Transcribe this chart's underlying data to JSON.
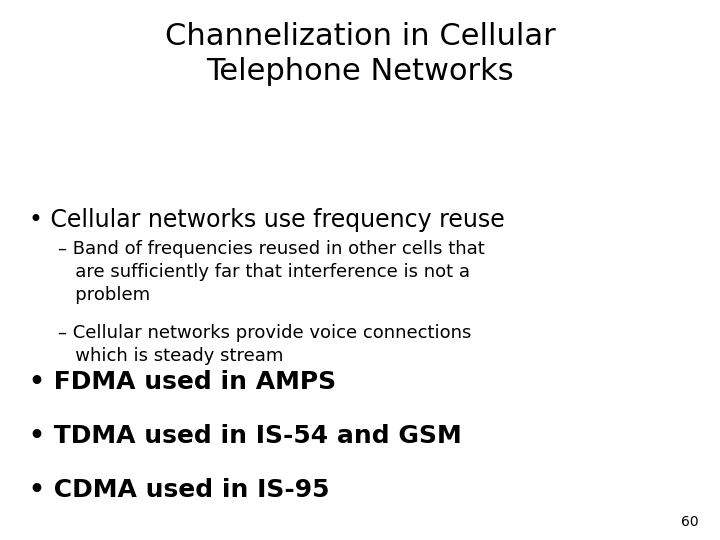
{
  "title_line1": "Channelization in Cellular",
  "title_line2": "Telephone Networks",
  "title_fontsize": 22,
  "title_fontweight": "normal",
  "background_color": "#ffffff",
  "text_color": "#000000",
  "slide_number": "60",
  "bullet1": "Cellular networks use frequency reuse",
  "bullet1_fontsize": 17,
  "bullet1_fontweight": "normal",
  "sub1_line1": "– Band of frequencies reused in other cells that",
  "sub1_line2": "   are sufficiently far that interference is not a",
  "sub1_line3": "   problem",
  "sub2_line1": "– Cellular networks provide voice connections",
  "sub2_line2": "   which is steady stream",
  "sub_fontsize": 13,
  "bullet2": "FDMA used in AMPS",
  "bullet3": "TDMA used in IS-54 and GSM",
  "bullet4": "CDMA used in IS-95",
  "bullet234_fontsize": 18,
  "bullet234_fontweight": "bold",
  "slide_num_fontsize": 10,
  "figwidth": 7.2,
  "figheight": 5.4,
  "dpi": 100
}
